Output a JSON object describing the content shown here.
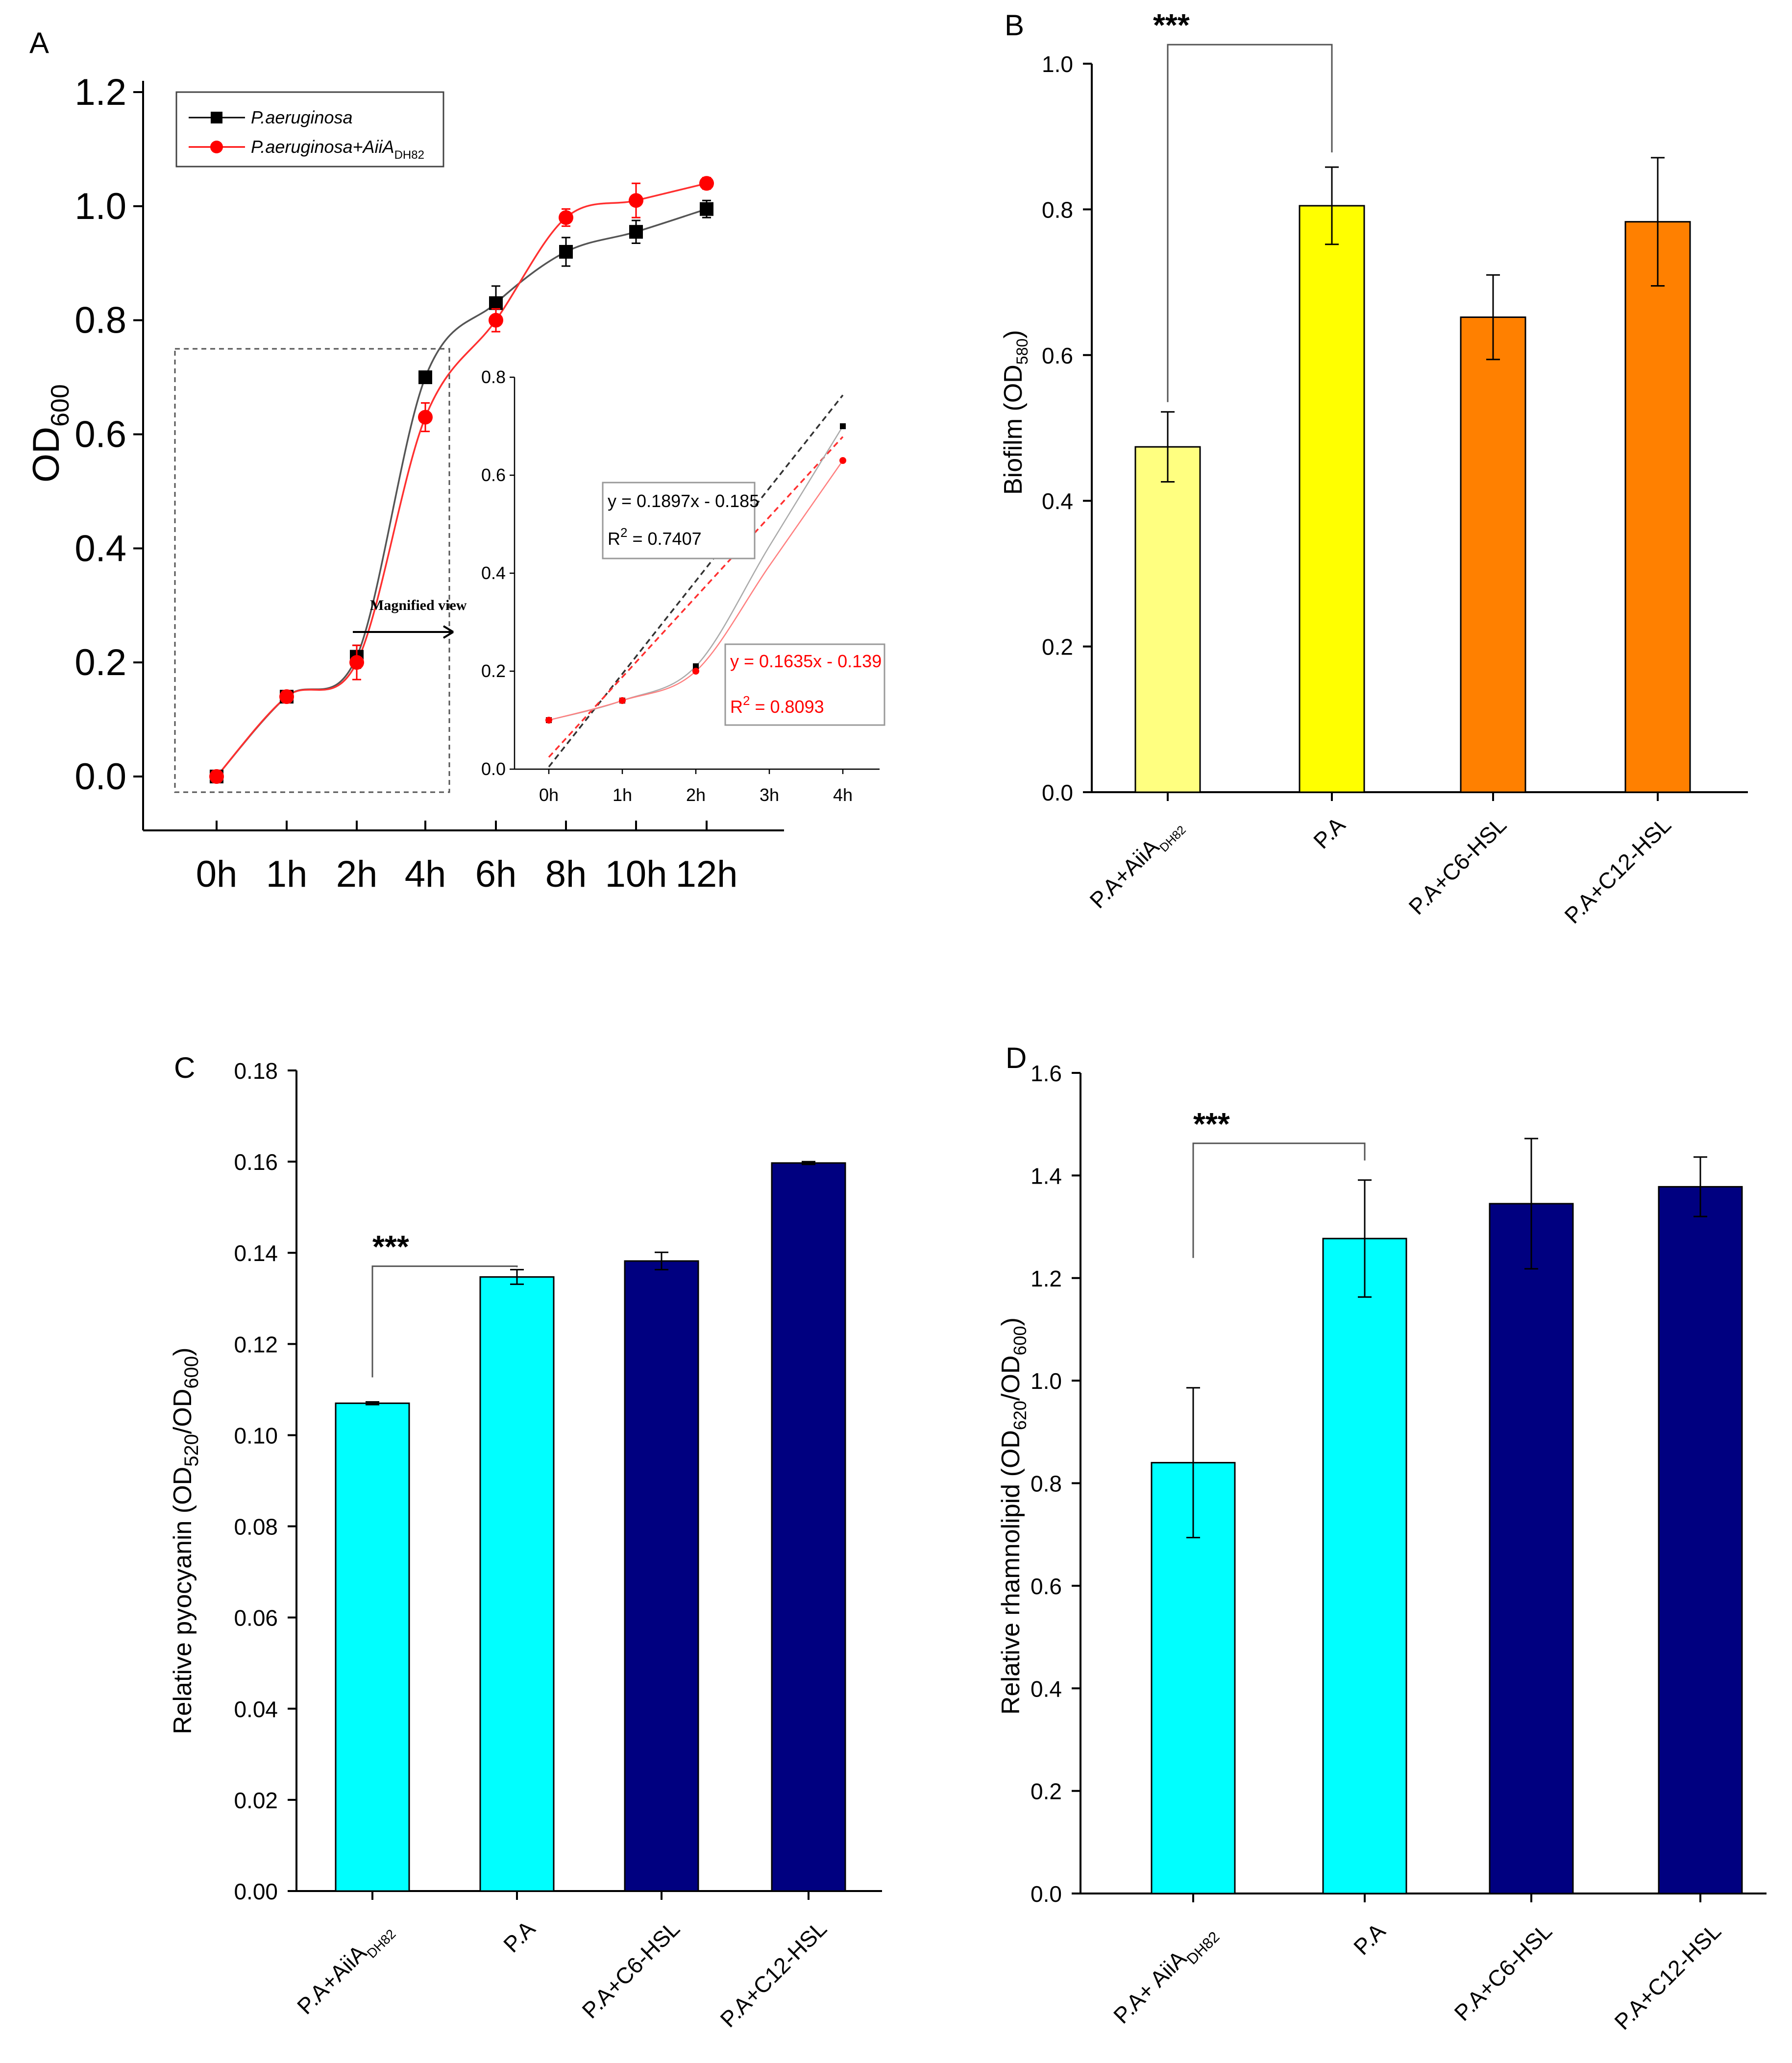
{
  "panels": {
    "A": {
      "letter": "A",
      "ylabel_main": "OD",
      "ylabel_sub": "600",
      "annotation": "Magnified view",
      "legend": [
        {
          "name": "P.aeruginosa",
          "sub": "",
          "color": "#000000",
          "marker": "square"
        },
        {
          "name": "P.aeruginosa+AiiA",
          "sub": "DH82",
          "color": "#ff0000",
          "marker": "circle"
        }
      ],
      "eq_black": {
        "line1": "y = 0.1897x - 0.185",
        "r2_prefix": "R",
        "r2_sup": "2",
        "r2_value": " = 0.7407"
      },
      "eq_red": {
        "line1": "y = 0.1635x - 0.139",
        "r2_prefix": "R",
        "r2_sup": "2",
        "r2_value": " = 0.8093"
      }
    },
    "B": {
      "letter": "B",
      "ylabel_main": "Biofilm (OD",
      "ylabel_sub": "580",
      "ylabel_end": ")",
      "sig": "***"
    },
    "C": {
      "letter": "C",
      "ylabel_main": "Relative pyocyanin (OD",
      "ylabel_sub1": "520",
      "ylabel_mid": "/OD",
      "ylabel_sub2": "600",
      "ylabel_end": ")",
      "sig": "***"
    },
    "D": {
      "letter": "D",
      "ylabel_main": "Relative rhamnolipid (OD",
      "ylabel_sub1": "620",
      "ylabel_mid": "/OD",
      "ylabel_sub2": "600",
      "ylabel_end": ")",
      "sig": "***"
    }
  },
  "chart_data": [
    {
      "panel": "A",
      "type": "line",
      "categories": [
        "0h",
        "1h",
        "2h",
        "4h",
        "6h",
        "8h",
        "10h",
        "12h"
      ],
      "series": [
        {
          "name": "P.aeruginosa",
          "values": [
            0.0,
            0.14,
            0.21,
            0.7,
            0.83,
            0.92,
            0.955,
            0.995
          ],
          "errors": [
            0.01,
            0.01,
            0.02,
            0.01,
            0.03,
            0.025,
            0.02,
            0.015
          ]
        },
        {
          "name": "P.aeruginosa+AiiA DH82",
          "values": [
            0.0,
            0.14,
            0.2,
            0.63,
            0.8,
            0.98,
            1.01,
            1.04
          ],
          "errors": [
            0.01,
            0.01,
            0.03,
            0.025,
            0.02,
            0.015,
            0.03,
            0.01
          ]
        }
      ],
      "ylabel": "OD600",
      "ylim": [
        0,
        1.2
      ],
      "yticks": [
        "0.0",
        "0.2",
        "0.4",
        "0.6",
        "0.8",
        "1.0",
        "1.2"
      ],
      "inset": {
        "categories": [
          "0h",
          "1h",
          "2h",
          "3h",
          "4h"
        ],
        "ylim": [
          0,
          0.8
        ],
        "yticks": [
          "0.0",
          "0.2",
          "0.4",
          "0.6",
          "0.8"
        ],
        "series": [
          {
            "name": "P.aeruginosa",
            "values": [
              0.1,
              0.14,
              0.21,
              0.455,
              0.7
            ]
          },
          {
            "name": "P.aeruginosa+AiiA DH82",
            "values": [
              0.1,
              0.14,
              0.2,
              0.415,
              0.63
            ]
          }
        ],
        "fits": [
          {
            "name": "black",
            "slope": 0.1897,
            "intercept": -0.185,
            "r2": 0.7407
          },
          {
            "name": "red",
            "slope": 0.1635,
            "intercept": -0.139,
            "r2": 0.8093
          }
        ]
      }
    },
    {
      "panel": "B",
      "type": "bar",
      "categories": [
        {
          "label": "P.A+AiiA",
          "sub": "DH82"
        },
        {
          "label": "P.A",
          "sub": ""
        },
        {
          "label": "P.A+C6-HSL",
          "sub": ""
        },
        {
          "label": "P.A+C12-HSL",
          "sub": ""
        }
      ],
      "values": [
        0.474,
        0.805,
        0.652,
        0.783
      ],
      "errors": [
        0.048,
        0.053,
        0.058,
        0.088
      ],
      "colors": [
        "#ffff80",
        "#ffff00",
        "#ff8000",
        "#ff8000"
      ],
      "ylabel": "Biofilm (OD580)",
      "ylim": [
        0,
        1.0
      ],
      "yticks": [
        "0.0",
        "0.2",
        "0.4",
        "0.6",
        "0.8",
        "1.0"
      ]
    },
    {
      "panel": "C",
      "type": "bar",
      "categories": [
        {
          "label": "P.A+AiiA",
          "sub": "DH82"
        },
        {
          "label": "P.A",
          "sub": ""
        },
        {
          "label": "P.A+C6-HSL",
          "sub": ""
        },
        {
          "label": "P.A+C12-HSL",
          "sub": ""
        }
      ],
      "values": [
        0.107,
        0.1347,
        0.1382,
        0.1597
      ],
      "errors": [
        0.0003,
        0.0016,
        0.0019,
        0.0003
      ],
      "colors": [
        "#00ffff",
        "#00ffff",
        "#000080",
        "#000080"
      ],
      "ylabel": "Relative pyocyanin (OD520/OD600)",
      "ylim": [
        0,
        0.18
      ],
      "yticks": [
        "0.00",
        "0.02",
        "0.04",
        "0.06",
        "0.08",
        "0.10",
        "0.12",
        "0.14",
        "0.16",
        "0.18"
      ]
    },
    {
      "panel": "D",
      "type": "bar",
      "categories": [
        {
          "label": "P.A+ AiiA",
          "sub": "DH82"
        },
        {
          "label": "P.A",
          "sub": ""
        },
        {
          "label": "P.A+C6-HSL",
          "sub": ""
        },
        {
          "label": "P.A+C12-HSL",
          "sub": ""
        }
      ],
      "values": [
        0.84,
        1.277,
        1.345,
        1.378
      ],
      "errors": [
        0.146,
        0.114,
        0.127,
        0.058
      ],
      "colors": [
        "#00ffff",
        "#00ffff",
        "#000080",
        "#000080"
      ],
      "ylabel": "Relative rhamnolipid (OD620/OD600)",
      "ylim": [
        0,
        1.6
      ],
      "yticks": [
        "0.0",
        "0.2",
        "0.4",
        "0.6",
        "0.8",
        "1.0",
        "1.2",
        "1.4",
        "1.6"
      ]
    }
  ]
}
